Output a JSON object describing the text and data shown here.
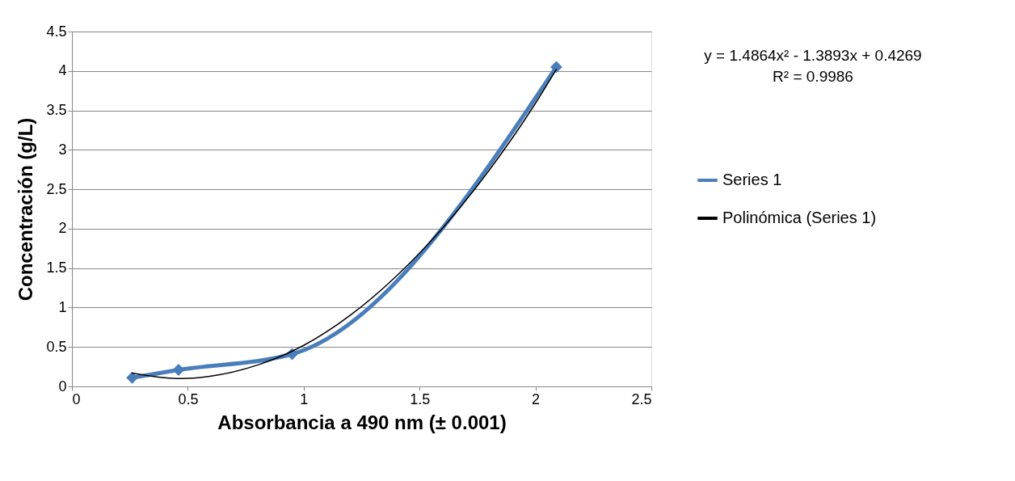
{
  "chart_data": {
    "type": "line",
    "xlabel": "Absorbancia a 490 nm (± 0.001)",
    "ylabel": "Concentración (g/L)",
    "xlim": [
      0,
      2.5
    ],
    "xticks": [
      0,
      0.5,
      1,
      1.5,
      2,
      2.5
    ],
    "ylim": [
      0,
      4.5
    ],
    "yticks": [
      0,
      0.5,
      1,
      1.5,
      2,
      2.5,
      3,
      3.5,
      4,
      4.5
    ],
    "grid": "y",
    "legend": "right",
    "annotations": [
      "y = 1.4864x² - 1.3893x + 0.4269",
      "R² = 0.9986"
    ],
    "series": [
      {
        "name": "Series 1",
        "color": "#4a7ebb",
        "marker": "diamond",
        "x": [
          0.26,
          0.46,
          0.95,
          2.09
        ],
        "values": [
          0.11,
          0.21,
          0.41,
          4.05
        ]
      },
      {
        "name": "Polinómica (Series 1)",
        "color": "#000000",
        "marker": "none",
        "x": [
          0.26,
          0.4,
          0.47,
          0.6,
          0.8,
          1.0,
          1.2,
          1.4,
          1.6,
          1.8,
          2.0,
          2.09
        ],
        "values": [
          0.17,
          0.11,
          0.1,
          0.13,
          0.27,
          0.52,
          0.9,
          1.4,
          2.01,
          2.74,
          3.59,
          4.02
        ]
      }
    ]
  }
}
